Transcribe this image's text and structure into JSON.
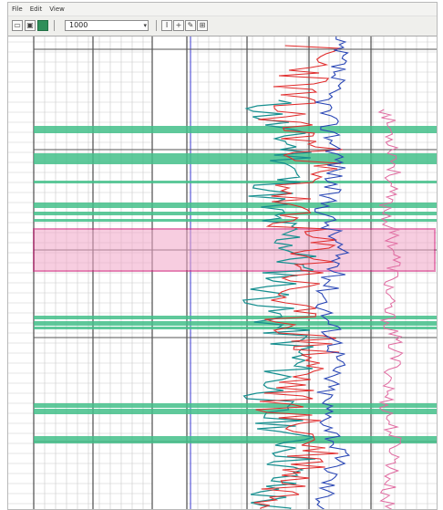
{
  "menu": {
    "file": "File",
    "edit": "Edit",
    "view": "View"
  },
  "toolbar": {
    "scale_value": "1000",
    "scale_arrow": "▾",
    "tool_cursor": "I",
    "tool_zoom": "+",
    "tool_pen": "✎",
    "tool_grid": "⊞"
  },
  "colors": {
    "zone_green": "#43c08a",
    "zone_pink": "#f2a6c8",
    "zone_pink_border": "#d1207a",
    "curve_red": "#e12a2a",
    "curve_teal": "#168f8f",
    "curve_blue": "#2845b5",
    "curve_pink": "#e06aa0",
    "grid_minor": "#c9c9c9",
    "grid_major": "#2a2a2a",
    "track_line_blue": "#3a3ad0"
  },
  "icons": {
    "open": "open-file-icon",
    "save": "save-icon",
    "globe": "globe-icon",
    "cursor": "text-cursor-icon",
    "zoom": "zoom-icon",
    "pen": "pen-icon",
    "grid": "grid-icon"
  }
}
